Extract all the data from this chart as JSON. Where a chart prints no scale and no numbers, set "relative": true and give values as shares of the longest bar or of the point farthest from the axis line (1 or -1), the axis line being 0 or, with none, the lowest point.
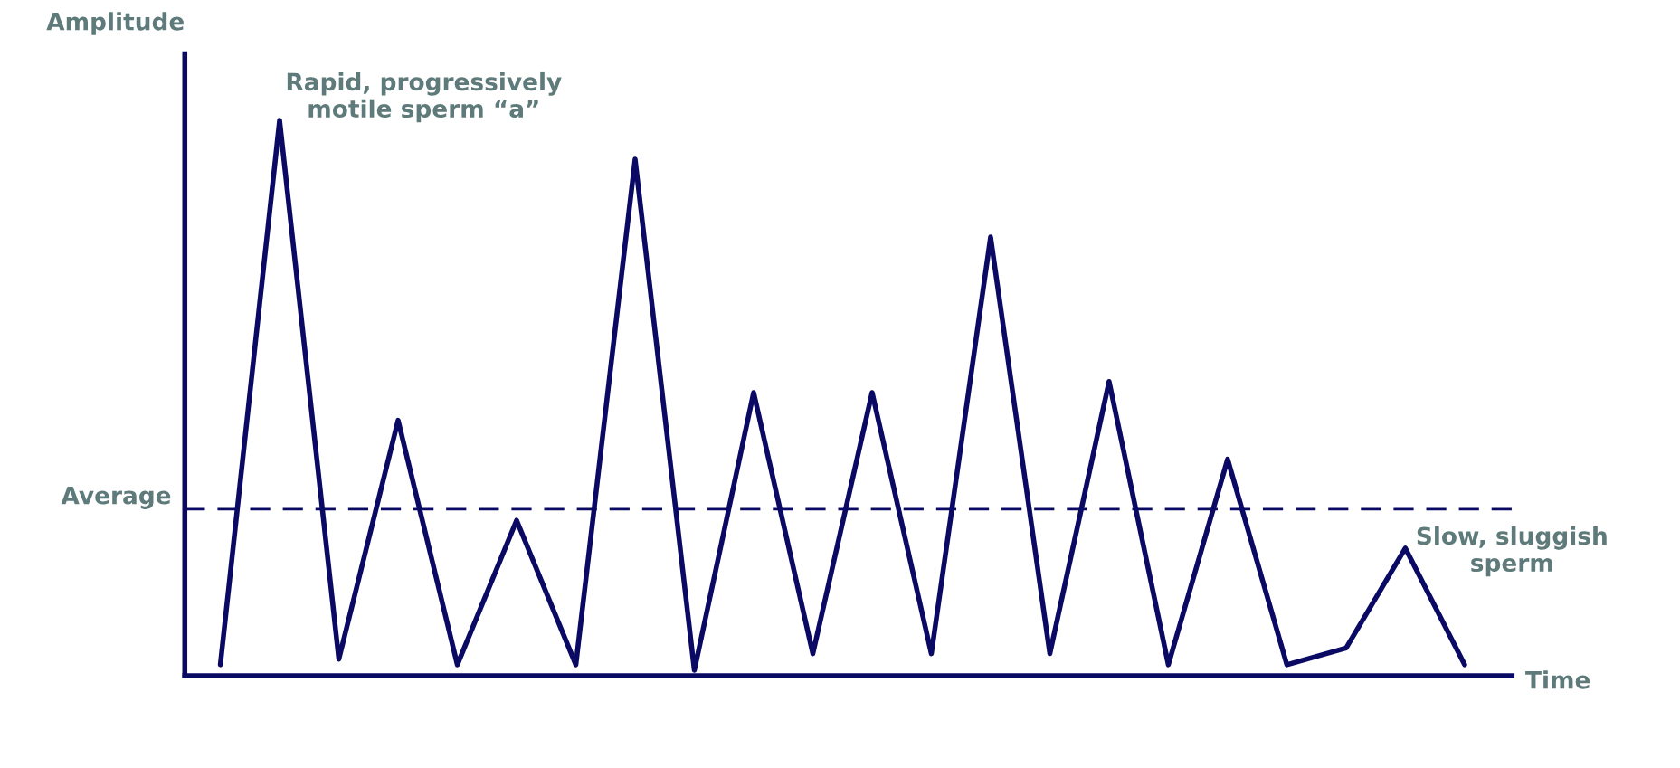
{
  "chart_data": {
    "type": "line",
    "relative": true,
    "xlabel": "Time",
    "ylabel": "Amplitude",
    "categories": [
      null,
      null,
      null,
      null,
      null,
      null,
      null,
      null,
      null,
      null,
      null,
      null,
      null,
      null,
      null,
      null,
      null,
      null,
      null,
      null,
      null,
      null
    ],
    "series": [
      {
        "color": "#0a0a64",
        "values": [
          0.02,
          1.0,
          0.03,
          0.46,
          0.02,
          0.28,
          0.02,
          0.93,
          0.01,
          0.51,
          0.04,
          0.51,
          0.04,
          0.79,
          0.04,
          0.53,
          0.02,
          0.39,
          0.02,
          0.05,
          0.23,
          0.02
        ]
      }
    ],
    "ref_lines": [
      {
        "axis": "y",
        "value": 0.3,
        "label": "Average",
        "color": "#0a0a64",
        "line_style": "dashed"
      }
    ],
    "annotations": [
      {
        "text": "Rapid, progressively\nmotile sperm “a”"
      },
      {
        "text": "Slow, sluggish\nsperm"
      }
    ],
    "grid": false,
    "legend": false,
    "line_style": "solid",
    "marker": "none"
  }
}
